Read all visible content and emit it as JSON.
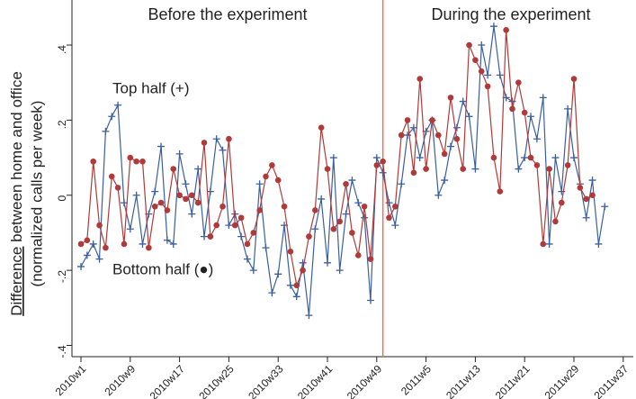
{
  "chart_data": {
    "type": "line",
    "annotations": {
      "before": "Before the experiment",
      "during": "During the experiment",
      "top": "Top half (+)",
      "bottom": "Bottom half (●)"
    },
    "ylabel": {
      "emphasis": "Difference",
      "rest": "between home and office",
      "line2": "(normalized calls per week)"
    },
    "categories": [
      "2010w1",
      null,
      null,
      null,
      null,
      null,
      null,
      null,
      "2010w9",
      null,
      null,
      null,
      null,
      null,
      null,
      null,
      "2010w17",
      null,
      null,
      null,
      null,
      null,
      null,
      null,
      "2010w25",
      null,
      null,
      null,
      null,
      null,
      null,
      null,
      "2010w33",
      null,
      null,
      null,
      null,
      null,
      null,
      null,
      "2010w41",
      null,
      null,
      null,
      null,
      null,
      null,
      null,
      "2010w49",
      null,
      null,
      null,
      null,
      null,
      null,
      null,
      "2011w5",
      null,
      null,
      null,
      null,
      null,
      null,
      null,
      "2011w13",
      null,
      null,
      null,
      null,
      null,
      null,
      null,
      "2011w21",
      null,
      null,
      null,
      null,
      null,
      null,
      null,
      "2011w29",
      null,
      null,
      null,
      null,
      null,
      null,
      null,
      "2011w37"
    ],
    "series": [
      {
        "name": "Top half",
        "color": "#3a5f9e",
        "marker": "plus",
        "values": [
          -0.19,
          -0.16,
          -0.13,
          -0.17,
          0.17,
          0.21,
          0.24,
          -0.02,
          -0.09,
          0.0,
          -0.13,
          -0.05,
          0.01,
          0.13,
          -0.12,
          -0.13,
          0.11,
          0.03,
          -0.05,
          0.07,
          -0.11,
          0.01,
          0.15,
          0.12,
          -0.08,
          -0.05,
          -0.11,
          -0.17,
          -0.2,
          0.03,
          -0.14,
          -0.26,
          -0.21,
          -0.08,
          -0.24,
          -0.27,
          -0.18,
          -0.32,
          -0.09,
          -0.01,
          -0.18,
          0.1,
          -0.2,
          -0.05,
          0.04,
          -0.02,
          -0.06,
          -0.28,
          0.1,
          0.06,
          -0.02,
          -0.08,
          0.03,
          0.16,
          0.18,
          0.1,
          0.17,
          0.2,
          0.0,
          0.04,
          0.13,
          0.18,
          0.25,
          0.21,
          0.07,
          0.4,
          0.32,
          0.45,
          0.32,
          0.26,
          0.25,
          0.07,
          0.1,
          0.21,
          0.15,
          0.26,
          -0.13,
          0.1,
          0.01,
          0.23,
          0.1,
          0.03,
          -0.06,
          0.04,
          -0.13,
          -0.03,
          null,
          null,
          null
        ]
      },
      {
        "name": "Bottom half",
        "color": "#b03a3a",
        "marker": "circle",
        "values": [
          -0.13,
          -0.12,
          0.09,
          -0.08,
          -0.14,
          0.05,
          0.02,
          -0.13,
          0.1,
          0.09,
          0.09,
          -0.14,
          -0.03,
          -0.02,
          -0.04,
          0.07,
          0.0,
          -0.01,
          0.0,
          -0.02,
          0.14,
          -0.11,
          -0.08,
          -0.03,
          0.15,
          -0.08,
          -0.06,
          -0.13,
          -0.1,
          -0.04,
          0.05,
          0.08,
          0.04,
          -0.03,
          -0.15,
          -0.24,
          -0.2,
          -0.11,
          -0.04,
          0.18,
          0.07,
          -0.09,
          -0.07,
          0.03,
          -0.1,
          -0.16,
          -0.03,
          -0.17,
          0.08,
          0.09,
          -0.06,
          -0.03,
          0.16,
          0.2,
          0.06,
          0.31,
          0.07,
          0.2,
          0.16,
          0.11,
          0.26,
          0.15,
          0.07,
          0.4,
          0.36,
          0.33,
          0.29,
          0.1,
          0.01,
          0.44,
          0.23,
          0.3,
          0.22,
          0.1,
          0.08,
          -0.13,
          0.07,
          -0.07,
          -0.02,
          0.08,
          0.31,
          0.02,
          -0.01,
          0.0,
          null,
          null,
          null,
          null,
          null
        ]
      }
    ],
    "vline_x": 49,
    "vline_color": "#e8735a",
    "ylim": [
      -0.43,
      0.52
    ],
    "yticks": [
      {
        "value": -0.4,
        "label": "-.4"
      },
      {
        "value": -0.2,
        "label": "-.2"
      },
      0,
      {
        "value": 0.2,
        "label": ".2"
      },
      {
        "value": 0.4,
        "label": ".4"
      }
    ]
  }
}
